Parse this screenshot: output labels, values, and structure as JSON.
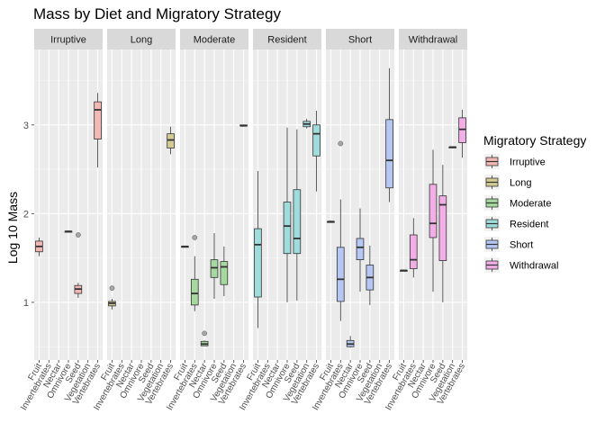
{
  "chart_data": {
    "type": "boxplot",
    "title": "Mass by Diet and Migratory Strategy",
    "xlabel": "",
    "ylabel": "Log 10 Mass",
    "ylim": [
      0.35,
      3.85
    ],
    "y_ticks": [
      1,
      2,
      3
    ],
    "grid": true,
    "x_categories": [
      "Fruit",
      "Invertebrates",
      "Nectar",
      "Omnivore",
      "Seed",
      "Vegetation",
      "Vertebrates"
    ],
    "legend": {
      "title": "Migratory Strategy",
      "placement": "right",
      "entries": [
        {
          "label": "Irruptive",
          "color": "#F4B8B4"
        },
        {
          "label": "Long",
          "color": "#D4CB92"
        },
        {
          "label": "Moderate",
          "color": "#A5D9A0"
        },
        {
          "label": "Resident",
          "color": "#A0DCDC"
        },
        {
          "label": "Short",
          "color": "#B5C7F2"
        },
        {
          "label": "Withdrawal",
          "color": "#F2AEE6"
        }
      ]
    },
    "facets": [
      {
        "label": "Irruptive",
        "boxes": [
          {
            "diet": "Fruit",
            "min": 1.52,
            "q1": 1.57,
            "median": 1.63,
            "q3": 1.69,
            "max": 1.73,
            "outliers": []
          },
          {
            "diet": "Omnivore",
            "min": 1.79,
            "q1": 1.79,
            "median": 1.8,
            "q3": 1.8,
            "max": 1.81,
            "outliers": []
          },
          {
            "diet": "Seed",
            "min": 1.05,
            "q1": 1.1,
            "median": 1.15,
            "q3": 1.19,
            "max": 1.22,
            "outliers": [
              1.76
            ]
          },
          {
            "diet": "Vertebrates",
            "min": 2.52,
            "q1": 2.84,
            "median": 3.17,
            "q3": 3.26,
            "max": 3.36,
            "outliers": []
          }
        ]
      },
      {
        "label": "Long",
        "boxes": [
          {
            "diet": "Fruit",
            "min": 0.92,
            "q1": 0.96,
            "median": 0.99,
            "q3": 1.01,
            "max": 1.04,
            "outliers": [
              1.16
            ]
          },
          {
            "diet": "Vertebrates",
            "min": 2.67,
            "q1": 2.74,
            "median": 2.83,
            "q3": 2.9,
            "max": 2.98,
            "outliers": []
          }
        ]
      },
      {
        "label": "Moderate",
        "boxes": [
          {
            "diet": "Fruit",
            "min": 1.62,
            "q1": 1.62,
            "median": 1.63,
            "q3": 1.63,
            "max": 1.63,
            "outliers": []
          },
          {
            "diet": "Invertebrates",
            "min": 0.9,
            "q1": 0.97,
            "median": 1.1,
            "q3": 1.26,
            "max": 1.52,
            "outliers": [
              1.73
            ]
          },
          {
            "diet": "Nectar",
            "min": 0.51,
            "q1": 0.51,
            "median": 0.53,
            "q3": 0.56,
            "max": 0.57,
            "outliers": [
              0.65
            ]
          },
          {
            "diet": "Omnivore",
            "min": 1.04,
            "q1": 1.28,
            "median": 1.39,
            "q3": 1.48,
            "max": 1.78,
            "outliers": []
          },
          {
            "diet": "Seed",
            "min": 1.07,
            "q1": 1.2,
            "median": 1.4,
            "q3": 1.46,
            "max": 1.63,
            "outliers": []
          },
          {
            "diet": "Vertebrates",
            "min": 2.99,
            "q1": 2.99,
            "median": 2.99,
            "q3": 3.0,
            "max": 3.0,
            "outliers": []
          }
        ]
      },
      {
        "label": "Resident",
        "boxes": [
          {
            "diet": "Fruit",
            "min": 0.71,
            "q1": 1.06,
            "median": 1.65,
            "q3": 1.83,
            "max": 2.48,
            "outliers": []
          },
          {
            "diet": "Omnivore",
            "min": 1.0,
            "q1": 1.55,
            "median": 1.86,
            "q3": 2.13,
            "max": 2.97,
            "outliers": []
          },
          {
            "diet": "Seed",
            "min": 1.02,
            "q1": 1.55,
            "median": 1.72,
            "q3": 2.27,
            "max": 2.95,
            "outliers": []
          },
          {
            "diet": "Vegetation",
            "min": 2.96,
            "q1": 2.98,
            "median": 3.01,
            "q3": 3.04,
            "max": 3.07,
            "outliers": []
          },
          {
            "diet": "Vertebrates",
            "min": 2.25,
            "q1": 2.65,
            "median": 2.9,
            "q3": 3.0,
            "max": 3.16,
            "outliers": []
          }
        ]
      },
      {
        "label": "Short",
        "boxes": [
          {
            "diet": "Fruit",
            "min": 1.9,
            "q1": 1.9,
            "median": 1.91,
            "q3": 1.91,
            "max": 1.92,
            "outliers": []
          },
          {
            "diet": "Invertebrates",
            "min": 0.79,
            "q1": 1.01,
            "median": 1.26,
            "q3": 1.62,
            "max": 2.16,
            "outliers": [
              2.79
            ]
          },
          {
            "diet": "Nectar",
            "min": 0.49,
            "q1": 0.5,
            "median": 0.53,
            "q3": 0.57,
            "max": 0.62,
            "outliers": []
          },
          {
            "diet": "Omnivore",
            "min": 1.12,
            "q1": 1.48,
            "median": 1.62,
            "q3": 1.72,
            "max": 2.06,
            "outliers": []
          },
          {
            "diet": "Seed",
            "min": 0.97,
            "q1": 1.14,
            "median": 1.28,
            "q3": 1.42,
            "max": 1.64,
            "outliers": []
          },
          {
            "diet": "Vertebrates",
            "min": 2.13,
            "q1": 2.29,
            "median": 2.6,
            "q3": 3.06,
            "max": 3.64,
            "outliers": []
          }
        ]
      },
      {
        "label": "Withdrawal",
        "boxes": [
          {
            "diet": "Fruit",
            "min": 1.35,
            "q1": 1.35,
            "median": 1.36,
            "q3": 1.36,
            "max": 1.36,
            "outliers": []
          },
          {
            "diet": "Invertebrates",
            "min": 1.28,
            "q1": 1.38,
            "median": 1.48,
            "q3": 1.76,
            "max": 1.95,
            "outliers": []
          },
          {
            "diet": "Omnivore",
            "min": 1.12,
            "q1": 1.73,
            "median": 1.89,
            "q3": 2.33,
            "max": 2.72,
            "outliers": []
          },
          {
            "diet": "Seed",
            "min": 1.0,
            "q1": 1.47,
            "median": 2.1,
            "q3": 2.2,
            "max": 2.55,
            "outliers": []
          },
          {
            "diet": "Vegetation",
            "min": 2.74,
            "q1": 2.74,
            "median": 2.75,
            "q3": 2.75,
            "max": 2.76,
            "outliers": []
          },
          {
            "diet": "Vertebrates",
            "min": 2.63,
            "q1": 2.8,
            "median": 2.95,
            "q3": 3.08,
            "max": 3.17,
            "outliers": []
          }
        ]
      }
    ]
  }
}
